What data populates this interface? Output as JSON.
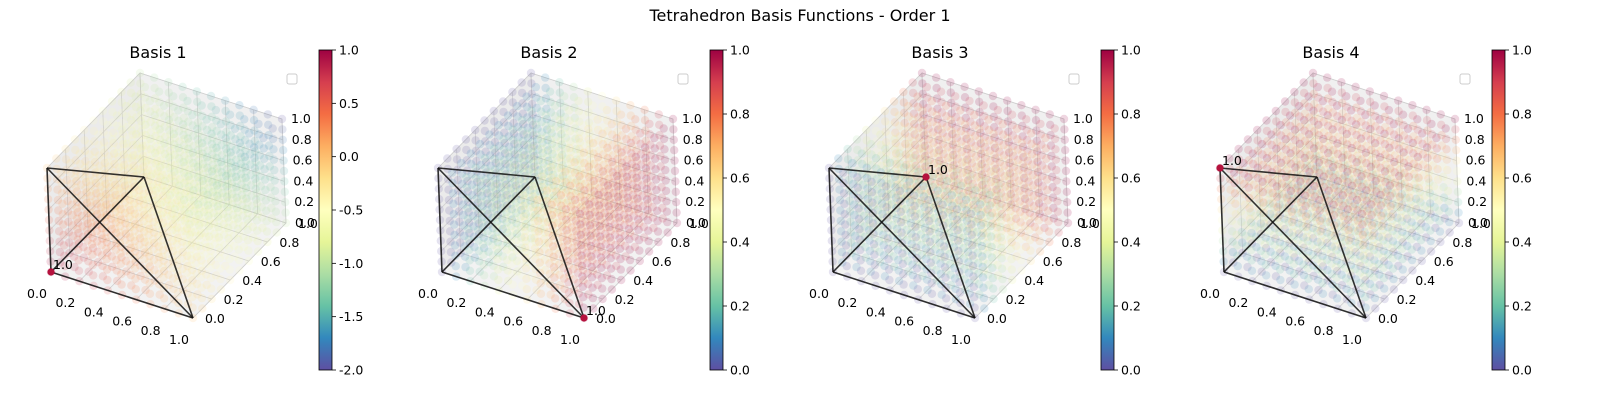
{
  "title": "Tetrahedron Basis Functions - Order 1",
  "chart_data": [
    {
      "type": "scatter",
      "title": "Basis 1",
      "function": "1 - x - y - z",
      "colormap": "Spectral_r",
      "x_ticks": [
        "0.0",
        "0.2",
        "0.4",
        "0.6",
        "0.8",
        "1.0"
      ],
      "y_ticks": [
        "0.0",
        "0.2",
        "0.4",
        "0.6",
        "0.8",
        "1.0"
      ],
      "z_ticks": [
        "0.0",
        "0.2",
        "0.4",
        "0.6",
        "0.8",
        "1.0"
      ],
      "colorbar": {
        "min": -2.0,
        "max": 1.0,
        "ticks": [
          "-2.0",
          "-1.5",
          "-1.0",
          "-0.5",
          "0.0",
          "0.5",
          "1.0"
        ]
      },
      "vertex": {
        "coords": [
          0,
          0,
          0
        ],
        "label": "1.0"
      },
      "tetrahedron": [
        [
          0,
          0,
          0
        ],
        [
          1,
          0,
          0
        ],
        [
          0,
          1,
          0
        ],
        [
          0,
          0,
          1
        ]
      ],
      "legend": "empty, top-right"
    },
    {
      "type": "scatter",
      "title": "Basis 2",
      "function": "x",
      "colormap": "Spectral_r",
      "x_ticks": [
        "0.0",
        "0.2",
        "0.4",
        "0.6",
        "0.8",
        "1.0"
      ],
      "y_ticks": [
        "0.0",
        "0.2",
        "0.4",
        "0.6",
        "0.8",
        "1.0"
      ],
      "z_ticks": [
        "0.0",
        "0.2",
        "0.4",
        "0.6",
        "0.8",
        "1.0"
      ],
      "colorbar": {
        "min": 0.0,
        "max": 1.0,
        "ticks": [
          "0.0",
          "0.2",
          "0.4",
          "0.6",
          "0.8",
          "1.0"
        ]
      },
      "vertex": {
        "coords": [
          1,
          0,
          0
        ],
        "label": "1.0"
      },
      "tetrahedron": [
        [
          0,
          0,
          0
        ],
        [
          1,
          0,
          0
        ],
        [
          0,
          1,
          0
        ],
        [
          0,
          0,
          1
        ]
      ],
      "legend": "empty, top-right"
    },
    {
      "type": "scatter",
      "title": "Basis 3",
      "function": "y",
      "colormap": "Spectral_r",
      "x_ticks": [
        "0.0",
        "0.2",
        "0.4",
        "0.6",
        "0.8",
        "1.0"
      ],
      "y_ticks": [
        "0.0",
        "0.2",
        "0.4",
        "0.6",
        "0.8",
        "1.0"
      ],
      "z_ticks": [
        "0.0",
        "0.2",
        "0.4",
        "0.6",
        "0.8",
        "1.0"
      ],
      "colorbar": {
        "min": 0.0,
        "max": 1.0,
        "ticks": [
          "0.0",
          "0.2",
          "0.4",
          "0.6",
          "0.8",
          "1.0"
        ]
      },
      "vertex": {
        "coords": [
          0,
          1,
          0
        ],
        "label": "1.0"
      },
      "tetrahedron": [
        [
          0,
          0,
          0
        ],
        [
          1,
          0,
          0
        ],
        [
          0,
          1,
          0
        ],
        [
          0,
          0,
          1
        ]
      ],
      "legend": "empty, top-right"
    },
    {
      "type": "scatter",
      "title": "Basis 4",
      "function": "z",
      "colormap": "Spectral_r",
      "x_ticks": [
        "0.0",
        "0.2",
        "0.4",
        "0.6",
        "0.8",
        "1.0"
      ],
      "y_ticks": [
        "0.0",
        "0.2",
        "0.4",
        "0.6",
        "0.8",
        "1.0"
      ],
      "z_ticks": [
        "0.0",
        "0.2",
        "0.4",
        "0.6",
        "0.8",
        "1.0"
      ],
      "colorbar": {
        "min": 0.0,
        "max": 1.0,
        "ticks": [
          "0.0",
          "0.2",
          "0.4",
          "0.6",
          "0.8",
          "1.0"
        ]
      },
      "vertex": {
        "coords": [
          0,
          0,
          1
        ],
        "label": "1.0"
      },
      "tetrahedron": [
        [
          0,
          0,
          0
        ],
        [
          1,
          0,
          0
        ],
        [
          0,
          1,
          0
        ],
        [
          0,
          0,
          1
        ]
      ],
      "legend": "empty, top-right"
    }
  ]
}
